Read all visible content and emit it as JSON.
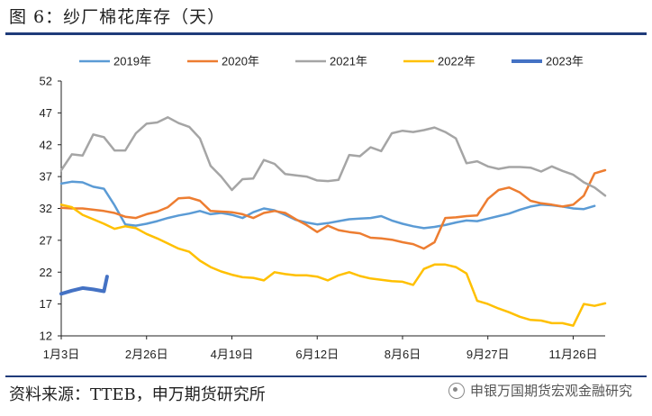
{
  "header": {
    "title": "图 6：纱厂棉花库存（天）"
  },
  "footer": {
    "source": "资料来源：TTEB，申万期货研究所",
    "watermark": "申银万国期货宏观金融研究"
  },
  "chart_data": {
    "type": "line",
    "title": "图 6：纱厂棉花库存（天）",
    "xlabel": "",
    "ylabel": "",
    "ylim": [
      12,
      52
    ],
    "yticks": [
      12,
      17,
      22,
      27,
      32,
      37,
      42,
      47,
      52
    ],
    "xlim": [
      0,
      51
    ],
    "xtick_labels": [
      "1月3日",
      "2月26日",
      "4月19日",
      "6月12日",
      "8月6日",
      "9月27日",
      "11月26日"
    ],
    "xtick_positions": [
      0,
      8,
      16,
      24,
      32,
      40,
      48
    ],
    "legend_position": "top",
    "grid": false,
    "series": [
      {
        "name": "2019年",
        "color": "#5b9bd5",
        "x": [
          0,
          1,
          2,
          3,
          4,
          5,
          6,
          7,
          8,
          9,
          10,
          11,
          12,
          13,
          14,
          15,
          16,
          17,
          18,
          19,
          20,
          21,
          22,
          23,
          24,
          25,
          26,
          27,
          28,
          29,
          30,
          31,
          32,
          33,
          34,
          35,
          36,
          37,
          38,
          39,
          40,
          41,
          42,
          43,
          44,
          45,
          46,
          47,
          48,
          49,
          50
        ],
        "values": [
          35.9,
          36.2,
          36.1,
          35.4,
          35.1,
          32.5,
          29.5,
          29.3,
          29.6,
          30.0,
          30.5,
          30.9,
          31.2,
          31.6,
          31.1,
          31.3,
          31.0,
          30.5,
          31.4,
          32.0,
          31.7,
          31.0,
          30.2,
          29.8,
          29.5,
          29.7,
          30.0,
          30.3,
          30.4,
          30.5,
          30.8,
          30.1,
          29.6,
          29.2,
          28.9,
          29.1,
          29.4,
          29.8,
          30.1,
          30.0,
          30.4,
          30.8,
          31.2,
          31.8,
          32.3,
          32.6,
          32.5,
          32.3,
          32.0,
          31.9,
          32.4
        ]
      },
      {
        "name": "2020年",
        "color": "#ed7d31",
        "x": [
          0,
          1,
          2,
          3,
          4,
          5,
          6,
          7,
          8,
          9,
          10,
          11,
          12,
          13,
          14,
          15,
          16,
          17,
          18,
          19,
          20,
          21,
          22,
          23,
          24,
          25,
          26,
          27,
          28,
          29,
          30,
          31,
          32,
          33,
          34,
          35,
          36,
          37,
          38,
          39,
          40,
          41,
          42,
          43,
          44,
          45,
          46,
          47,
          48,
          49,
          50,
          51
        ],
        "values": [
          32.1,
          32.0,
          32.0,
          31.8,
          31.6,
          31.3,
          30.7,
          30.5,
          31.1,
          31.5,
          32.2,
          33.6,
          33.7,
          33.2,
          31.6,
          31.5,
          31.4,
          31.1,
          30.5,
          31.3,
          31.6,
          31.3,
          30.3,
          29.4,
          28.3,
          29.3,
          28.6,
          28.3,
          28.1,
          27.4,
          27.3,
          27.1,
          26.7,
          26.4,
          25.7,
          26.7,
          30.5,
          30.6,
          30.8,
          30.9,
          33.5,
          34.9,
          35.3,
          34.5,
          33.2,
          32.8,
          32.6,
          32.3,
          32.6,
          34.0,
          37.5,
          38.0
        ]
      },
      {
        "name": "2021年",
        "color": "#a5a5a5",
        "x": [
          0,
          1,
          2,
          3,
          4,
          5,
          6,
          7,
          8,
          9,
          10,
          11,
          12,
          13,
          14,
          15,
          16,
          17,
          18,
          19,
          20,
          21,
          22,
          23,
          24,
          25,
          26,
          27,
          28,
          29,
          30,
          31,
          32,
          33,
          34,
          35,
          36,
          37,
          38,
          39,
          40,
          41,
          42,
          43,
          44,
          45,
          46,
          47,
          48,
          49,
          50,
          51
        ],
        "values": [
          38.0,
          40.5,
          40.3,
          43.6,
          43.2,
          41.1,
          41.1,
          43.8,
          45.3,
          45.5,
          46.3,
          45.4,
          44.8,
          43.0,
          38.7,
          37.0,
          34.9,
          36.6,
          36.7,
          39.6,
          39.0,
          37.4,
          37.2,
          37.0,
          36.4,
          36.3,
          36.5,
          40.4,
          40.2,
          41.6,
          41.0,
          43.8,
          44.2,
          44.0,
          44.3,
          44.7,
          44.0,
          43.0,
          39.1,
          39.4,
          38.6,
          38.2,
          38.5,
          38.5,
          38.4,
          37.8,
          38.6,
          37.9,
          37.3,
          36.1,
          35.3,
          34.0
        ]
      },
      {
        "name": "2022年",
        "color": "#ffc000",
        "x": [
          0,
          1,
          2,
          3,
          4,
          5,
          6,
          7,
          8,
          9,
          10,
          11,
          12,
          13,
          14,
          15,
          16,
          17,
          18,
          19,
          20,
          21,
          22,
          23,
          24,
          25,
          26,
          27,
          28,
          29,
          30,
          31,
          32,
          33,
          34,
          35,
          36,
          37,
          38,
          39,
          40,
          41,
          42,
          43,
          44,
          45,
          46,
          47,
          48,
          49,
          50,
          51
        ],
        "values": [
          32.6,
          32.2,
          31.0,
          30.3,
          29.6,
          28.8,
          29.2,
          28.9,
          28.0,
          27.3,
          26.5,
          25.7,
          25.2,
          23.8,
          22.8,
          22.1,
          21.6,
          21.2,
          21.1,
          20.7,
          22.0,
          21.7,
          21.5,
          21.5,
          21.3,
          20.7,
          21.5,
          22.0,
          21.4,
          21.0,
          20.8,
          20.6,
          20.5,
          20.0,
          22.5,
          23.2,
          23.2,
          22.8,
          21.8,
          17.5,
          17.0,
          16.3,
          15.7,
          15.0,
          14.5,
          14.4,
          14.0,
          14.0,
          13.6,
          17.0,
          16.7,
          17.1
        ]
      },
      {
        "name": "2023年",
        "color": "#4472c4",
        "x": [
          0,
          1,
          2,
          3,
          4,
          4.3
        ],
        "values": [
          18.6,
          19.1,
          19.5,
          19.3,
          19.0,
          21.3
        ]
      }
    ]
  }
}
